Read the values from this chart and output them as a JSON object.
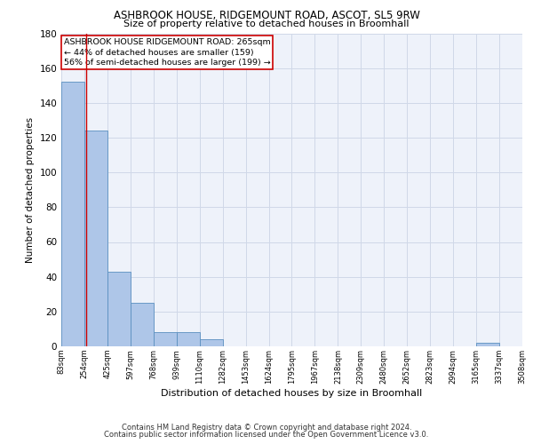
{
  "title1": "ASHBROOK HOUSE, RIDGEMOUNT ROAD, ASCOT, SL5 9RW",
  "title2": "Size of property relative to detached houses in Broomhall",
  "xlabel": "Distribution of detached houses by size in Broomhall",
  "ylabel": "Number of detached properties",
  "annotation_title": "ASHBROOK HOUSE RIDGEMOUNT ROAD: 265sqm",
  "annotation_line2": "← 44% of detached houses are smaller (159)",
  "annotation_line3": "56% of semi-detached houses are larger (199) →",
  "property_line_x": 265,
  "bar_edges": [
    83,
    254,
    425,
    597,
    768,
    939,
    1110,
    1282,
    1453,
    1624,
    1795,
    1967,
    2138,
    2309,
    2480,
    2652,
    2823,
    2994,
    3165,
    3337,
    3508
  ],
  "bar_values": [
    152,
    124,
    43,
    25,
    8,
    8,
    4,
    0,
    0,
    0,
    0,
    0,
    0,
    0,
    0,
    0,
    0,
    0,
    2,
    0,
    0
  ],
  "bar_color": "#aec6e8",
  "bar_edge_color": "#5a8fc0",
  "grid_color": "#d0d8e8",
  "background_color": "#eef2fa",
  "vline_color": "#cc0000",
  "footer1": "Contains HM Land Registry data © Crown copyright and database right 2024.",
  "footer2": "Contains public sector information licensed under the Open Government Licence v3.0.",
  "ylim": [
    0,
    180
  ],
  "yticks": [
    0,
    20,
    40,
    60,
    80,
    100,
    120,
    140,
    160,
    180
  ]
}
